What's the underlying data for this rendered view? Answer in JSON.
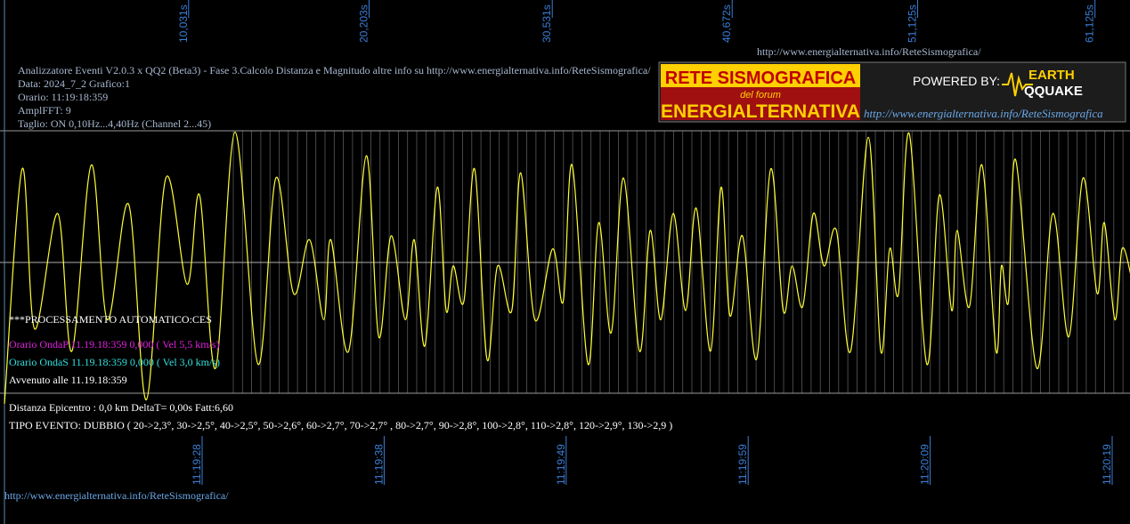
{
  "header": {
    "title": "Analizzatore Eventi V2.0.3 x QQ2 (Beta3) - Fase 3.Calcolo Distanza e Magnitudo altre info su http://www.energialternativa.info/ReteSismografica/",
    "date": "Data: 2024_7_2 Grafico:1",
    "time": "Orario: 11:19:18:359",
    "ampl": "AmplFFT: 9",
    "filter": "Taglio: ON 0,10Hz...4,40Hz       (Channel 2...45)",
    "url": "http://www.energialternativa.info/ReteSismografica/"
  },
  "logo": {
    "line1": "RETE SISMOGRAFICA",
    "line2": "del forum",
    "line3": "ENERGIALTERNATIVA",
    "powered": "POWERED BY:",
    "brand1": "EARTH",
    "brand2": "QQUAKE",
    "url": "http://www.energialternativa.info/ReteSismografica"
  },
  "trace": {
    "xlim": [
      -0.35,
      63.35
    ],
    "ylim": [
      -100,
      100
    ],
    "color": "#ffff33",
    "xticks": [
      {
        "value": 10.031,
        "label": "10,031s"
      },
      {
        "value": 20.203,
        "label": "20,203s"
      },
      {
        "value": 30.531,
        "label": "30,531s"
      },
      {
        "value": 40.672,
        "label": "40,672s"
      },
      {
        "value": 51.125,
        "label": "51,125s"
      },
      {
        "value": 61.125,
        "label": "61,125s"
      }
    ],
    "times": [
      "11:19:28",
      "11:19:38",
      "11:19:49",
      "11:19:59",
      "11:20:09",
      "11:20:19"
    ],
    "x": [
      -0.1,
      0.9,
      1.6,
      2.9,
      3.7,
      4.8,
      5.7,
      6.9,
      7.9,
      9.0,
      10.2,
      10.9,
      11.8,
      12.9,
      14.2,
      15.2,
      16.2,
      17.1,
      17.9,
      18.3,
      19.3,
      20.3,
      21.0,
      21.7,
      22.5,
      23.0,
      23.6,
      24.3,
      24.8,
      25.2,
      25.8,
      26.4,
      27.1,
      27.7,
      28.5,
      29.0,
      29.8,
      30.8,
      31.4,
      31.9,
      32.8,
      33.4,
      34.1,
      34.8,
      35.7,
      36.3,
      36.9,
      37.6,
      38.3,
      38.9,
      39.7,
      40.3,
      40.8,
      41.5,
      42.3,
      43.1,
      43.8,
      44.3,
      44.9,
      45.5,
      46.1,
      46.8,
      47.6,
      48.6,
      49.3,
      49.8,
      50.3,
      50.9,
      51.9,
      52.6,
      53.3,
      53.6,
      54.3,
      55.0,
      55.8,
      56.1,
      56.5,
      56.9,
      58.1,
      59.0,
      59.9,
      60.7,
      61.5,
      61.9,
      62.5,
      62.9,
      63.4
    ],
    "values": [
      -108,
      71,
      -51,
      37,
      -68,
      74,
      -44,
      44,
      -105,
      64,
      -17,
      51,
      -81,
      99,
      -78,
      64,
      -24,
      17,
      -44,
      17,
      -68,
      81,
      -57,
      20,
      -44,
      17,
      -64,
      57,
      -37,
      -3,
      -30,
      71,
      -74,
      -3,
      -37,
      68,
      -44,
      10,
      -30,
      74,
      -78,
      30,
      -54,
      64,
      -68,
      24,
      -44,
      37,
      -37,
      41,
      -68,
      57,
      -41,
      20,
      -74,
      71,
      -37,
      -3,
      -34,
      37,
      -3,
      24,
      -68,
      95,
      -68,
      10,
      -24,
      98,
      -78,
      51,
      -37,
      24,
      -34,
      74,
      -68,
      -3,
      -30,
      78,
      -81,
      37,
      -57,
      64,
      -24,
      30,
      -44,
      10,
      -10
    ]
  },
  "report": {
    "processing": "***PROCESSAMENTO AUTOMATICO:CES",
    "wave_p": "Orario OndaP 11.19.18:359  0,000 ( Vel 5,5 km/s)",
    "wave_s": "Orario OndaS 11.19.18:359  0,000 ( Vel 3,0 km/s)",
    "occurred": "Avvenuto alle 11.19.18:359",
    "distance": "Distanza Epicentro : 0,0 km DeltaT= 0,00s  Fatt:6,60",
    "event_type": "TIPO EVENTO: DUBBIO ( 20->2,3°, 30->2,5°, 40->2,5°, 50->2,6°, 60->2,7°, 70->2,7° , 80->2,7°, 90->2,8°, 100->2,8°, 110->2,8°, 120->2,9°, 130->2,9 )"
  },
  "footer": {
    "url": "http://www.energialternativa.info/ReteSismografica/"
  }
}
